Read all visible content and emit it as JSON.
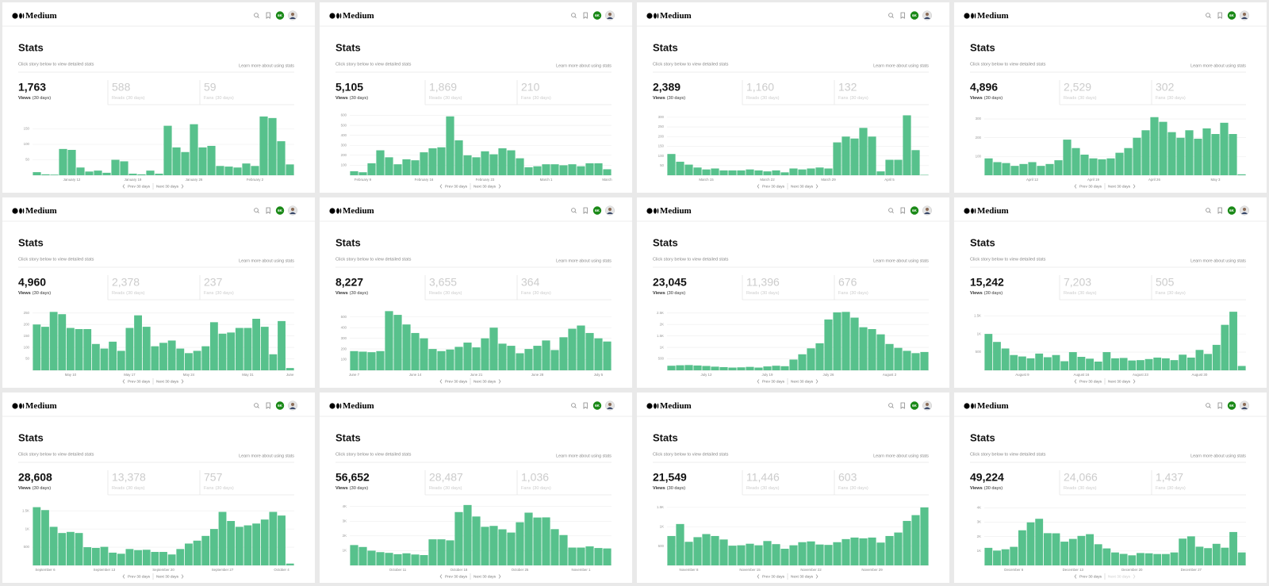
{
  "common": {
    "logo": "Medium",
    "badge": "6K",
    "title": "Stats",
    "subtitle": "Click story below to view detailed stats",
    "learn_more": "Learn more about using stats",
    "views_label": "Views",
    "reads_label": "Reads",
    "fans_label": "Fans",
    "period": "(30 days)",
    "prev": "Prev 30 days",
    "next": "Next 30 days"
  },
  "panels": [
    {
      "views": "1,763",
      "reads": "588",
      "fans": "59"
    },
    {
      "views": "5,105",
      "reads": "1,869",
      "fans": "210"
    },
    {
      "views": "2,389",
      "reads": "1,160",
      "fans": "132"
    },
    {
      "views": "4,896",
      "reads": "2,529",
      "fans": "302"
    },
    {
      "views": "4,960",
      "reads": "2,378",
      "fans": "237"
    },
    {
      "views": "8,227",
      "reads": "3,655",
      "fans": "364"
    },
    {
      "views": "23,045",
      "reads": "11,396",
      "fans": "676"
    },
    {
      "views": "15,242",
      "reads": "7,203",
      "fans": "505"
    },
    {
      "views": "28,608",
      "reads": "13,378",
      "fans": "757"
    },
    {
      "views": "56,652",
      "reads": "28,487",
      "fans": "1,036"
    },
    {
      "views": "21,549",
      "reads": "11,446",
      "fans": "603"
    },
    {
      "views": "49,224",
      "reads": "24,066",
      "fans": "1,437"
    }
  ],
  "chart_data": [
    {
      "type": "bar",
      "color": "#57c18c",
      "grid": true,
      "ylim": [
        0,
        200
      ],
      "yticks": [
        50,
        100,
        150
      ],
      "categories": [
        null,
        null,
        null,
        null,
        "January 12",
        null,
        null,
        null,
        null,
        null,
        null,
        "January 19",
        null,
        null,
        null,
        null,
        null,
        null,
        "January 26",
        null,
        null,
        null,
        null,
        null,
        null,
        "February 2",
        null,
        null,
        null,
        null
      ],
      "values": [
        10,
        3,
        2,
        85,
        82,
        25,
        12,
        15,
        8,
        50,
        45,
        5,
        3,
        15,
        5,
        160,
        90,
        75,
        165,
        90,
        95,
        30,
        28,
        25,
        38,
        30,
        190,
        185,
        110,
        35
      ]
    },
    {
      "type": "bar",
      "color": "#57c18c",
      "grid": true,
      "ylim": [
        0,
        620
      ],
      "yticks": [
        100,
        200,
        300,
        400,
        500,
        600
      ],
      "categories": [
        null,
        "February 9",
        null,
        null,
        null,
        null,
        null,
        null,
        "February 16",
        null,
        null,
        null,
        null,
        null,
        null,
        "February 23",
        null,
        null,
        null,
        null,
        null,
        null,
        "March 1",
        null,
        null,
        null,
        null,
        null,
        null,
        "March"
      ],
      "values": [
        40,
        30,
        120,
        250,
        180,
        110,
        160,
        150,
        230,
        270,
        280,
        590,
        350,
        200,
        180,
        240,
        210,
        270,
        250,
        170,
        80,
        90,
        110,
        110,
        100,
        110,
        90,
        120,
        120,
        60
      ]
    },
    {
      "type": "bar",
      "color": "#57c18c",
      "grid": true,
      "ylim": [
        0,
        320
      ],
      "yticks": [
        50,
        100,
        150,
        200,
        250,
        300
      ],
      "categories": [
        null,
        null,
        null,
        null,
        "March 15",
        null,
        null,
        null,
        null,
        null,
        null,
        "March 22",
        null,
        null,
        null,
        null,
        null,
        null,
        "March 29",
        null,
        null,
        null,
        null,
        null,
        null,
        "April 5",
        null,
        null,
        null,
        null
      ],
      "values": [
        110,
        70,
        55,
        40,
        30,
        35,
        25,
        25,
        25,
        30,
        25,
        20,
        25,
        15,
        35,
        30,
        35,
        40,
        35,
        170,
        200,
        190,
        245,
        200,
        20,
        80,
        80,
        310,
        130,
        2
      ]
    },
    {
      "type": "bar",
      "color": "#57c18c",
      "grid": true,
      "ylim": [
        0,
        330
      ],
      "yticks": [
        100,
        200,
        300
      ],
      "categories": [
        null,
        null,
        null,
        null,
        null,
        "April 12",
        null,
        null,
        null,
        null,
        null,
        null,
        "April 19",
        null,
        null,
        null,
        null,
        null,
        null,
        "April 26",
        null,
        null,
        null,
        null,
        null,
        null,
        "May 3",
        null,
        null,
        null
      ],
      "values": [
        90,
        70,
        65,
        50,
        60,
        70,
        50,
        60,
        80,
        190,
        145,
        110,
        90,
        85,
        90,
        120,
        145,
        200,
        240,
        310,
        285,
        230,
        200,
        240,
        195,
        250,
        220,
        280,
        220,
        5
      ]
    },
    {
      "type": "bar",
      "color": "#57c18c",
      "grid": true,
      "ylim": [
        0,
        270
      ],
      "yticks": [
        50,
        100,
        150,
        200,
        250
      ],
      "categories": [
        null,
        null,
        null,
        null,
        "May 10",
        null,
        null,
        null,
        null,
        null,
        null,
        "May 17",
        null,
        null,
        null,
        null,
        null,
        null,
        "May 24",
        null,
        null,
        null,
        null,
        null,
        null,
        "May 31",
        null,
        null,
        null,
        null,
        "June"
      ],
      "values": [
        200,
        190,
        255,
        245,
        185,
        180,
        180,
        115,
        95,
        125,
        85,
        185,
        240,
        190,
        105,
        120,
        130,
        95,
        75,
        85,
        105,
        210,
        160,
        165,
        185,
        185,
        225,
        190,
        70,
        215,
        10
      ]
    },
    {
      "type": "bar",
      "color": "#57c18c",
      "grid": true,
      "ylim": [
        0,
        580
      ],
      "yticks": [
        100,
        200,
        300,
        400,
        500
      ],
      "categories": [
        "June 7",
        null,
        null,
        null,
        null,
        null,
        null,
        "June 14",
        null,
        null,
        null,
        null,
        null,
        null,
        "June 21",
        null,
        null,
        null,
        null,
        null,
        null,
        "June 28",
        null,
        null,
        null,
        null,
        null,
        null,
        "July 5",
        null
      ],
      "values": [
        180,
        175,
        170,
        180,
        555,
        520,
        430,
        350,
        300,
        200,
        180,
        195,
        220,
        260,
        215,
        300,
        400,
        250,
        230,
        160,
        200,
        230,
        280,
        190,
        310,
        390,
        420,
        350,
        300,
        270
      ]
    },
    {
      "type": "bar",
      "color": "#57c18c",
      "grid": true,
      "ylim": [
        0,
        2700
      ],
      "yticks": [
        500,
        {
          "value": 1000,
          "label": "1K"
        },
        {
          "value": 1500,
          "label": "1.5K"
        },
        {
          "value": 2000,
          "label": "2K"
        },
        {
          "value": 2500,
          "label": "2.5K"
        }
      ],
      "categories": [
        null,
        null,
        null,
        null,
        "July 12",
        null,
        null,
        null,
        null,
        null,
        null,
        "July 19",
        null,
        null,
        null,
        null,
        null,
        null,
        "July 26",
        null,
        null,
        null,
        null,
        null,
        null,
        "August 2",
        null,
        null,
        null,
        null
      ],
      "values": [
        200,
        220,
        230,
        210,
        190,
        160,
        140,
        120,
        130,
        150,
        120,
        170,
        200,
        180,
        470,
        700,
        960,
        1180,
        2220,
        2530,
        2550,
        2300,
        1880,
        1800,
        1570,
        1150,
        980,
        850,
        750,
        800
      ]
    },
    {
      "type": "bar",
      "color": "#57c18c",
      "grid": true,
      "ylim": [
        0,
        1700
      ],
      "yticks": [
        500,
        {
          "value": 1000,
          "label": "1K"
        },
        {
          "value": 1500,
          "label": "1.5K"
        }
      ],
      "categories": [
        null,
        null,
        null,
        null,
        "August 9",
        null,
        null,
        null,
        null,
        null,
        null,
        "August 16",
        null,
        null,
        null,
        null,
        null,
        null,
        "August 23",
        null,
        null,
        null,
        null,
        null,
        null,
        "August 30",
        null,
        null,
        null,
        null,
        null
      ],
      "values": [
        1000,
        780,
        600,
        420,
        380,
        330,
        460,
        360,
        420,
        250,
        500,
        370,
        320,
        240,
        500,
        330,
        340,
        270,
        280,
        310,
        350,
        330,
        280,
        430,
        350,
        560,
        450,
        700,
        1250,
        1610,
        120
      ]
    },
    {
      "type": "bar",
      "color": "#57c18c",
      "grid": true,
      "ylim": [
        0,
        1700
      ],
      "yticks": [
        500,
        {
          "value": 1000,
          "label": "1K"
        },
        {
          "value": 1500,
          "label": "1.5K"
        }
      ],
      "categories": [
        null,
        "September 6",
        null,
        null,
        null,
        null,
        null,
        null,
        "September 13",
        null,
        null,
        null,
        null,
        null,
        null,
        "September 20",
        null,
        null,
        null,
        null,
        null,
        null,
        "September 27",
        null,
        null,
        null,
        null,
        null,
        null,
        "October 4",
        null
      ],
      "values": [
        1600,
        1520,
        1060,
        890,
        920,
        890,
        500,
        480,
        510,
        350,
        320,
        450,
        420,
        430,
        370,
        370,
        300,
        450,
        600,
        680,
        810,
        1000,
        1470,
        1220,
        1060,
        1100,
        1150,
        1260,
        1470,
        1370,
        50
      ]
    },
    {
      "type": "bar",
      "color": "#57c18c",
      "grid": true,
      "ylim": [
        0,
        4200
      ],
      "yticks": [
        {
          "value": 1000,
          "label": "1K"
        },
        {
          "value": 2000,
          "label": "2K"
        },
        {
          "value": 3000,
          "label": "3K"
        },
        {
          "value": 4000,
          "label": "4K"
        }
      ],
      "categories": [
        null,
        null,
        null,
        null,
        null,
        "October 11",
        null,
        null,
        null,
        null,
        null,
        null,
        "October 18",
        null,
        null,
        null,
        null,
        null,
        null,
        "October 25",
        null,
        null,
        null,
        null,
        null,
        null,
        "November 1",
        null,
        null,
        null
      ],
      "values": [
        1380,
        1250,
        1000,
        900,
        850,
        760,
        820,
        740,
        700,
        1770,
        1770,
        1700,
        3620,
        4100,
        3320,
        2620,
        2680,
        2450,
        2230,
        2930,
        3580,
        3250,
        3260,
        2460,
        2060,
        1210,
        1210,
        1290,
        1180,
        1150
      ]
    },
    {
      "type": "bar",
      "color": "#57c18c",
      "grid": true,
      "ylim": [
        0,
        1600
      ],
      "yticks": [
        500,
        {
          "value": 1000,
          "label": "1K"
        },
        {
          "value": 1500,
          "label": "1.5K"
        }
      ],
      "categories": [
        null,
        null,
        "November 8",
        null,
        null,
        null,
        null,
        null,
        null,
        "November 15",
        null,
        null,
        null,
        null,
        null,
        null,
        "November 22",
        null,
        null,
        null,
        null,
        null,
        null,
        "November 29",
        null,
        null,
        null,
        null,
        null,
        null
      ],
      "values": [
        760,
        1070,
        610,
        730,
        810,
        760,
        670,
        510,
        520,
        560,
        520,
        630,
        550,
        430,
        520,
        600,
        620,
        540,
        530,
        600,
        680,
        720,
        700,
        720,
        590,
        760,
        850,
        1150,
        1300,
        1500
      ]
    },
    {
      "type": "bar",
      "color": "#57c18c",
      "grid": true,
      "ylim": [
        0,
        4300
      ],
      "yticks": [
        {
          "value": 1000,
          "label": "1K"
        },
        {
          "value": 2000,
          "label": "2K"
        },
        {
          "value": 3000,
          "label": "3K"
        },
        {
          "value": 4000,
          "label": "4K"
        }
      ],
      "categories": [
        null,
        null,
        null,
        "December 6",
        null,
        null,
        null,
        null,
        null,
        null,
        "December 13",
        null,
        null,
        null,
        null,
        null,
        null,
        "December 20",
        null,
        null,
        null,
        null,
        null,
        null,
        "December 27",
        null,
        null,
        null,
        null,
        null,
        null
      ],
      "values": [
        1220,
        1030,
        1120,
        1290,
        2440,
        2990,
        3240,
        2240,
        2230,
        1650,
        1840,
        2050,
        2170,
        1470,
        1180,
        900,
        800,
        700,
        860,
        840,
        790,
        790,
        900,
        1860,
        2020,
        1300,
        1200,
        1500,
        1230,
        2320,
        900
      ]
    }
  ]
}
